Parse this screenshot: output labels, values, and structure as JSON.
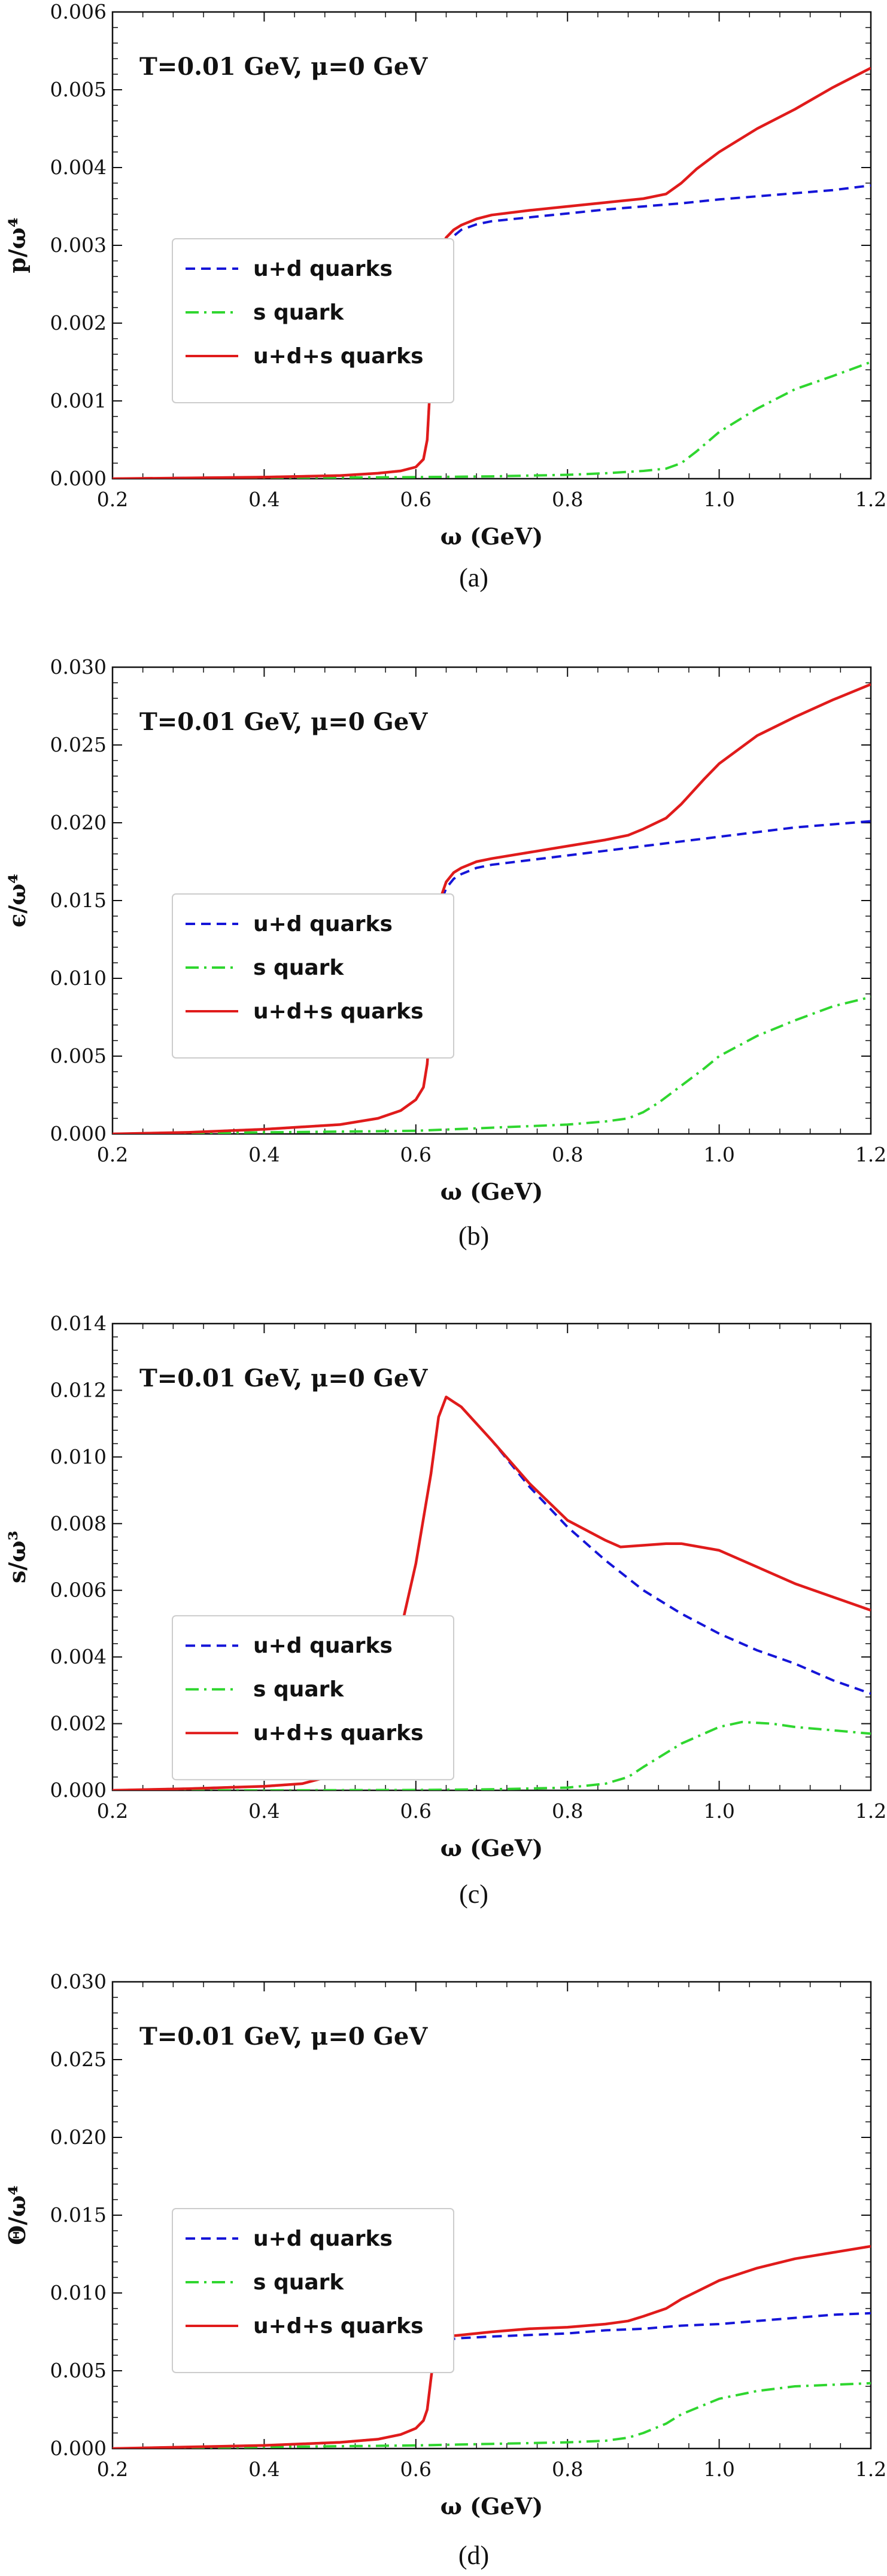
{
  "chart_data": [
    {
      "type": "line",
      "panel_label": "(a)",
      "annotation": "T=0.01 GeV, μ=0 GeV",
      "xlabel": "ω (GeV)",
      "ylabel": "p/ω⁴",
      "xlim": [
        0.2,
        1.2
      ],
      "ylim": [
        0,
        0.006
      ],
      "xticks": [
        0.2,
        0.4,
        0.6,
        0.8,
        1.0,
        1.2
      ],
      "xtick_labels": [
        "0.2",
        "0.4",
        "0.6",
        "0.8",
        "1.0",
        "1.2"
      ],
      "yticks": [
        0,
        0.001,
        0.002,
        0.003,
        0.004,
        0.005,
        0.006
      ],
      "ytick_labels": [
        "0.000",
        "0.001",
        "0.002",
        "0.003",
        "0.004",
        "0.005",
        "0.006"
      ],
      "legend_position": "middle-left",
      "series": [
        {
          "name": "u+d quarks",
          "color": "#1515d8",
          "dash": "dashed",
          "x": [
            0.2,
            0.3,
            0.4,
            0.5,
            0.55,
            0.58,
            0.6,
            0.61,
            0.615,
            0.62,
            0.625,
            0.63,
            0.64,
            0.65,
            0.66,
            0.68,
            0.7,
            0.75,
            0.8,
            0.85,
            0.9,
            0.95,
            1.0,
            1.05,
            1.1,
            1.15,
            1.2
          ],
          "y": [
            0.0,
            1e-05,
            2e-05,
            4e-05,
            7e-05,
            0.0001,
            0.00015,
            0.00025,
            0.0005,
            0.0014,
            0.0024,
            0.0028,
            0.003,
            0.00312,
            0.0032,
            0.00327,
            0.00331,
            0.00336,
            0.00341,
            0.00346,
            0.0035,
            0.00354,
            0.00359,
            0.00363,
            0.00367,
            0.00371,
            0.00377
          ]
        },
        {
          "name": "s quark",
          "color": "#2fd62f",
          "dash": "dashdot",
          "x": [
            0.2,
            0.4,
            0.6,
            0.7,
            0.8,
            0.85,
            0.9,
            0.93,
            0.95,
            0.97,
            1.0,
            1.05,
            1.1,
            1.15,
            1.2
          ],
          "y": [
            0.0,
            1e-05,
            2e-05,
            3e-05,
            5e-05,
            7e-05,
            0.0001,
            0.00013,
            0.0002,
            0.00035,
            0.0006,
            0.0009,
            0.00115,
            0.00132,
            0.0015
          ]
        },
        {
          "name": "u+d+s quarks",
          "color": "#e01b1b",
          "dash": "solid",
          "x": [
            0.2,
            0.3,
            0.4,
            0.5,
            0.55,
            0.58,
            0.6,
            0.61,
            0.615,
            0.62,
            0.625,
            0.63,
            0.64,
            0.65,
            0.66,
            0.68,
            0.7,
            0.75,
            0.8,
            0.85,
            0.9,
            0.93,
            0.95,
            0.97,
            1.0,
            1.05,
            1.1,
            1.15,
            1.2
          ],
          "y": [
            0.0,
            1e-05,
            2e-05,
            4e-05,
            7e-05,
            0.0001,
            0.00015,
            0.00025,
            0.0005,
            0.0014,
            0.0025,
            0.0029,
            0.0031,
            0.0032,
            0.00326,
            0.00334,
            0.00339,
            0.00345,
            0.0035,
            0.00355,
            0.0036,
            0.00366,
            0.0038,
            0.00398,
            0.0042,
            0.0045,
            0.00475,
            0.00503,
            0.00528
          ]
        }
      ]
    },
    {
      "type": "line",
      "panel_label": "(b)",
      "annotation": "T=0.01 GeV, μ=0 GeV",
      "xlabel": "ω (GeV)",
      "ylabel": "ϵ/ω⁴",
      "xlim": [
        0.2,
        1.2
      ],
      "ylim": [
        0,
        0.03
      ],
      "xticks": [
        0.2,
        0.4,
        0.6,
        0.8,
        1.0,
        1.2
      ],
      "xtick_labels": [
        "0.2",
        "0.4",
        "0.6",
        "0.8",
        "1.0",
        "1.2"
      ],
      "yticks": [
        0,
        0.005,
        0.01,
        0.015,
        0.02,
        0.025,
        0.03
      ],
      "ytick_labels": [
        "0.000",
        "0.005",
        "0.010",
        "0.015",
        "0.020",
        "0.025",
        "0.030"
      ],
      "legend_position": "middle-left",
      "series": [
        {
          "name": "u+d quarks",
          "color": "#1515d8",
          "dash": "dashed",
          "x": [
            0.2,
            0.3,
            0.4,
            0.5,
            0.55,
            0.58,
            0.6,
            0.61,
            0.615,
            0.62,
            0.625,
            0.63,
            0.64,
            0.65,
            0.66,
            0.68,
            0.7,
            0.75,
            0.8,
            0.85,
            0.9,
            0.95,
            1.0,
            1.05,
            1.1,
            1.15,
            1.2
          ],
          "y": [
            0.0,
            0.0001,
            0.0003,
            0.0006,
            0.001,
            0.0015,
            0.0022,
            0.003,
            0.0045,
            0.008,
            0.012,
            0.0145,
            0.0158,
            0.0164,
            0.0167,
            0.0171,
            0.0173,
            0.0176,
            0.0179,
            0.0182,
            0.0185,
            0.0188,
            0.0191,
            0.0194,
            0.0197,
            0.0199,
            0.0201
          ]
        },
        {
          "name": "s quark",
          "color": "#2fd62f",
          "dash": "dashdot",
          "x": [
            0.2,
            0.4,
            0.6,
            0.7,
            0.8,
            0.85,
            0.88,
            0.9,
            0.92,
            0.95,
            0.98,
            1.0,
            1.05,
            1.1,
            1.15,
            1.2
          ],
          "y": [
            0.0,
            0.0001,
            0.0002,
            0.0004,
            0.0006,
            0.0008,
            0.001,
            0.0014,
            0.002,
            0.0031,
            0.0042,
            0.005,
            0.0063,
            0.0073,
            0.0082,
            0.0088
          ]
        },
        {
          "name": "u+d+s quarks",
          "color": "#e01b1b",
          "dash": "solid",
          "x": [
            0.2,
            0.3,
            0.4,
            0.5,
            0.55,
            0.58,
            0.6,
            0.61,
            0.615,
            0.62,
            0.625,
            0.63,
            0.64,
            0.65,
            0.66,
            0.68,
            0.7,
            0.75,
            0.8,
            0.85,
            0.88,
            0.9,
            0.93,
            0.95,
            0.98,
            1.0,
            1.05,
            1.1,
            1.15,
            1.2
          ],
          "y": [
            0.0,
            0.0001,
            0.0003,
            0.0006,
            0.001,
            0.0015,
            0.0022,
            0.003,
            0.0045,
            0.008,
            0.0125,
            0.0148,
            0.0162,
            0.0168,
            0.0171,
            0.0175,
            0.0177,
            0.0181,
            0.0185,
            0.0189,
            0.0192,
            0.0196,
            0.0203,
            0.0212,
            0.0228,
            0.0238,
            0.0256,
            0.0268,
            0.0279,
            0.0289
          ]
        }
      ]
    },
    {
      "type": "line",
      "panel_label": "(c)",
      "annotation": "T=0.01 GeV, μ=0 GeV",
      "xlabel": "ω (GeV)",
      "ylabel": "s/ω³",
      "xlim": [
        0.2,
        1.2
      ],
      "ylim": [
        0,
        0.014
      ],
      "xticks": [
        0.2,
        0.4,
        0.6,
        0.8,
        1.0,
        1.2
      ],
      "xtick_labels": [
        "0.2",
        "0.4",
        "0.6",
        "0.8",
        "1.0",
        "1.2"
      ],
      "yticks": [
        0,
        0.002,
        0.004,
        0.006,
        0.008,
        0.01,
        0.012,
        0.014
      ],
      "ytick_labels": [
        "0.000",
        "0.002",
        "0.004",
        "0.006",
        "0.008",
        "0.010",
        "0.012",
        "0.014"
      ],
      "legend_position": "middle-left",
      "series": [
        {
          "name": "u+d quarks",
          "color": "#1515d8",
          "dash": "dashed",
          "x": [
            0.2,
            0.3,
            0.4,
            0.45,
            0.5,
            0.53,
            0.55,
            0.58,
            0.6,
            0.62,
            0.63,
            0.64,
            0.66,
            0.7,
            0.75,
            0.8,
            0.85,
            0.9,
            0.95,
            1.0,
            1.05,
            1.1,
            1.15,
            1.2
          ],
          "y": [
            0.0,
            5e-05,
            0.00012,
            0.0002,
            0.0005,
            0.0013,
            0.0024,
            0.0048,
            0.0068,
            0.0095,
            0.0112,
            0.0118,
            0.0115,
            0.0105,
            0.0091,
            0.0079,
            0.0069,
            0.006,
            0.0053,
            0.0047,
            0.0042,
            0.0038,
            0.0033,
            0.0029
          ]
        },
        {
          "name": "s quark",
          "color": "#2fd62f",
          "dash": "dashdot",
          "x": [
            0.2,
            0.4,
            0.6,
            0.7,
            0.8,
            0.85,
            0.88,
            0.9,
            0.95,
            1.0,
            1.03,
            1.07,
            1.1,
            1.15,
            1.2
          ],
          "y": [
            0.0,
            0.0,
            1e-05,
            3e-05,
            8e-05,
            0.0002,
            0.0004,
            0.0007,
            0.0014,
            0.0019,
            0.00205,
            0.002,
            0.0019,
            0.0018,
            0.0017
          ]
        },
        {
          "name": "u+d+s quarks",
          "color": "#e01b1b",
          "dash": "solid",
          "x": [
            0.2,
            0.3,
            0.4,
            0.45,
            0.5,
            0.53,
            0.55,
            0.58,
            0.6,
            0.62,
            0.63,
            0.64,
            0.66,
            0.7,
            0.75,
            0.8,
            0.85,
            0.87,
            0.9,
            0.93,
            0.95,
            1.0,
            1.05,
            1.1,
            1.15,
            1.2
          ],
          "y": [
            0.0,
            5e-05,
            0.00012,
            0.0002,
            0.0005,
            0.0013,
            0.0024,
            0.0048,
            0.0068,
            0.0095,
            0.0112,
            0.0118,
            0.0115,
            0.0105,
            0.0092,
            0.0081,
            0.0075,
            0.0073,
            0.00735,
            0.0074,
            0.0074,
            0.0072,
            0.0067,
            0.0062,
            0.0058,
            0.0054
          ]
        }
      ]
    },
    {
      "type": "line",
      "panel_label": "(d)",
      "annotation": "T=0.01 GeV, μ=0 GeV",
      "xlabel": "ω (GeV)",
      "ylabel": "Θ/ω⁴",
      "xlim": [
        0.2,
        1.2
      ],
      "ylim": [
        0,
        0.03
      ],
      "xticks": [
        0.2,
        0.4,
        0.6,
        0.8,
        1.0,
        1.2
      ],
      "xtick_labels": [
        "0.2",
        "0.4",
        "0.6",
        "0.8",
        "1.0",
        "1.2"
      ],
      "yticks": [
        0,
        0.005,
        0.01,
        0.015,
        0.02,
        0.025,
        0.03
      ],
      "ytick_labels": [
        "0.000",
        "0.005",
        "0.010",
        "0.015",
        "0.020",
        "0.025",
        "0.030"
      ],
      "legend_position": "middle-left",
      "series": [
        {
          "name": "u+d quarks",
          "color": "#1515d8",
          "dash": "dashed",
          "x": [
            0.2,
            0.3,
            0.4,
            0.5,
            0.55,
            0.58,
            0.6,
            0.61,
            0.615,
            0.62,
            0.625,
            0.63,
            0.64,
            0.66,
            0.7,
            0.75,
            0.8,
            0.85,
            0.9,
            0.95,
            1.0,
            1.05,
            1.1,
            1.15,
            1.2
          ],
          "y": [
            0.0,
            0.0001,
            0.0002,
            0.0004,
            0.0006,
            0.0009,
            0.0013,
            0.0018,
            0.0025,
            0.0045,
            0.0063,
            0.0069,
            0.007,
            0.0071,
            0.0072,
            0.0073,
            0.0074,
            0.0076,
            0.0077,
            0.0079,
            0.008,
            0.0082,
            0.0084,
            0.0086,
            0.0087
          ]
        },
        {
          "name": "s quark",
          "color": "#2fd62f",
          "dash": "dashdot",
          "x": [
            0.2,
            0.4,
            0.6,
            0.7,
            0.8,
            0.85,
            0.88,
            0.9,
            0.93,
            0.95,
            1.0,
            1.05,
            1.1,
            1.15,
            1.2
          ],
          "y": [
            0.0,
            0.0001,
            0.0002,
            0.0003,
            0.0004,
            0.0005,
            0.0007,
            0.001,
            0.0016,
            0.0022,
            0.0032,
            0.0037,
            0.004,
            0.0041,
            0.0042
          ]
        },
        {
          "name": "u+d+s quarks",
          "color": "#e01b1b",
          "dash": "solid",
          "x": [
            0.2,
            0.3,
            0.4,
            0.5,
            0.55,
            0.58,
            0.6,
            0.61,
            0.615,
            0.62,
            0.625,
            0.63,
            0.64,
            0.66,
            0.7,
            0.75,
            0.8,
            0.85,
            0.88,
            0.9,
            0.93,
            0.95,
            1.0,
            1.05,
            1.1,
            1.15,
            1.2
          ],
          "y": [
            0.0,
            0.0001,
            0.0002,
            0.0004,
            0.0006,
            0.0009,
            0.0013,
            0.0018,
            0.0025,
            0.0045,
            0.0065,
            0.007,
            0.0072,
            0.0073,
            0.0075,
            0.0077,
            0.0078,
            0.008,
            0.0082,
            0.0085,
            0.009,
            0.0096,
            0.0108,
            0.0116,
            0.0122,
            0.0126,
            0.013
          ]
        }
      ]
    }
  ]
}
